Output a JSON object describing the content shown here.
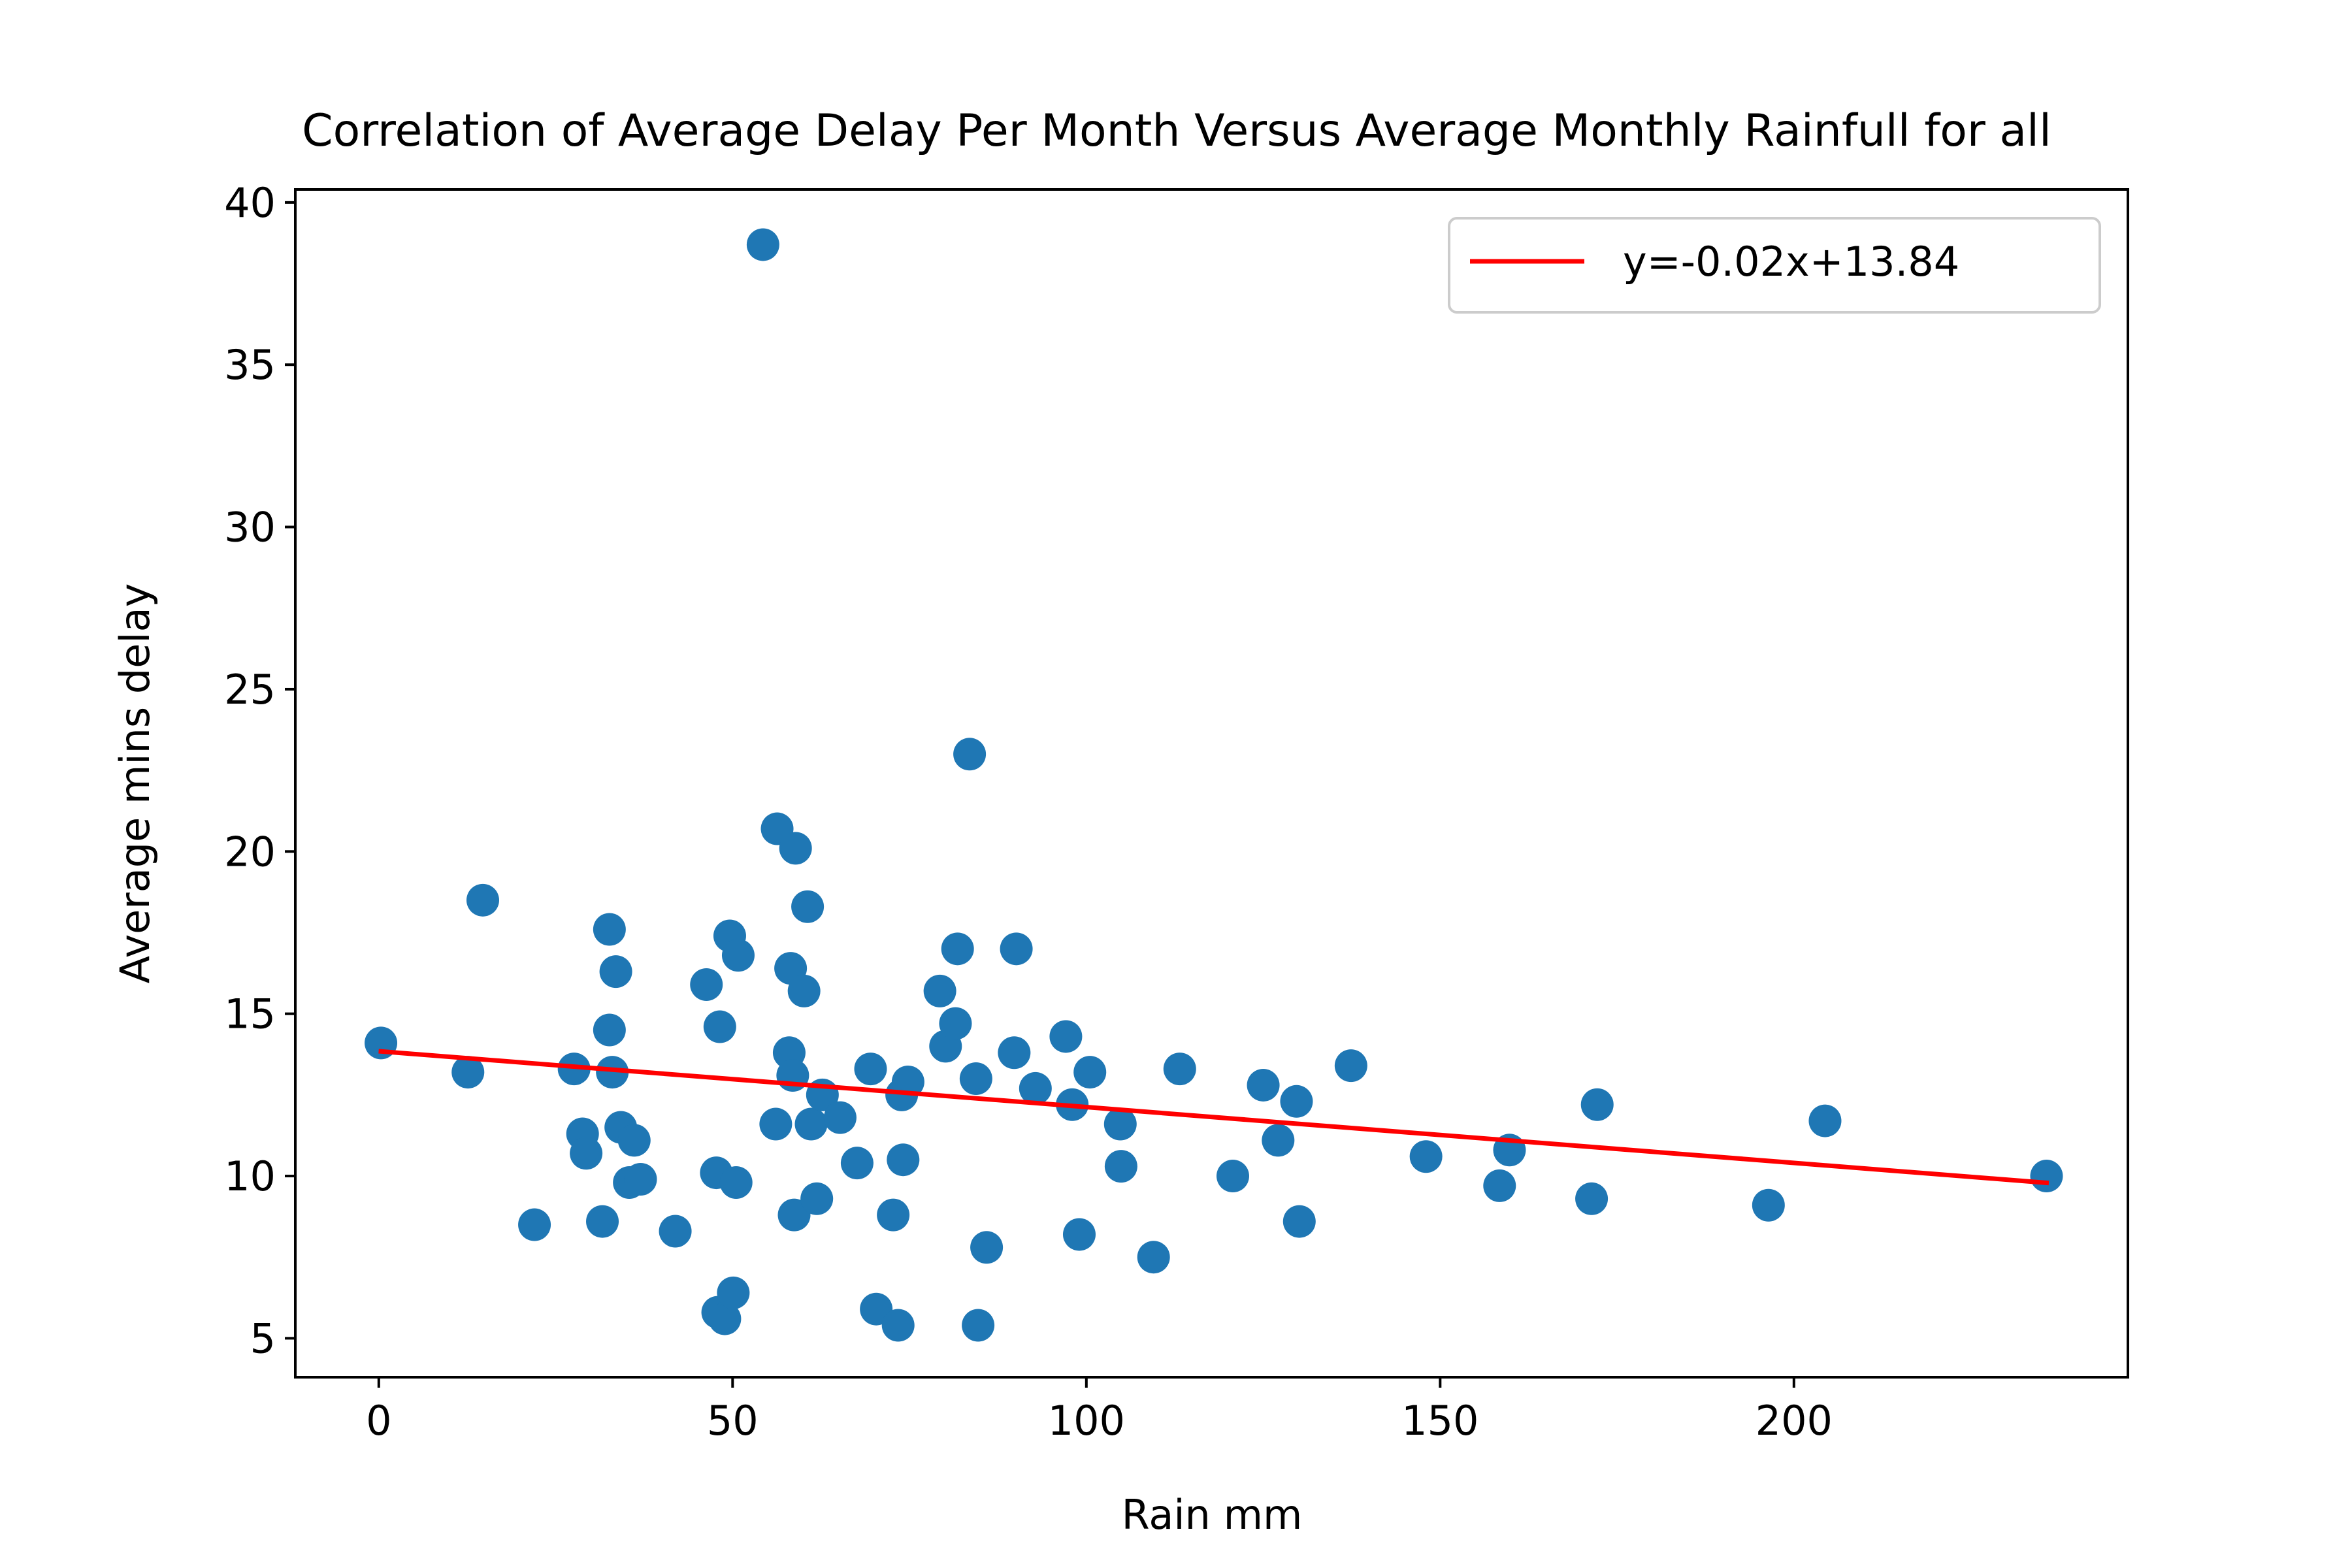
{
  "chart_data": {
    "type": "scatter",
    "title": "Correlation of Average Delay Per Month Versus Average Monthly Rainfull for all",
    "xlabel": "Rain mm",
    "ylabel": "Average mins delay",
    "xlim": [
      -11.8,
      247.2
    ],
    "ylim": [
      3.8,
      40.4
    ],
    "xticks": [
      0,
      50,
      100,
      150,
      200
    ],
    "yticks": [
      5,
      10,
      15,
      20,
      25,
      30,
      35,
      40
    ],
    "grid": false,
    "legend_position": "upper right",
    "series": [
      {
        "kind": "scatter",
        "color": "#1f77b4",
        "points": [
          [
            0.3,
            14.1
          ],
          [
            12.6,
            13.2
          ],
          [
            14.7,
            18.5
          ],
          [
            22.0,
            8.5
          ],
          [
            27.6,
            13.3
          ],
          [
            28.8,
            11.3
          ],
          [
            29.3,
            10.7
          ],
          [
            31.6,
            8.6
          ],
          [
            32.6,
            17.6
          ],
          [
            32.6,
            14.5
          ],
          [
            33.0,
            13.2
          ],
          [
            33.5,
            16.3
          ],
          [
            34.2,
            11.5
          ],
          [
            35.4,
            9.8
          ],
          [
            36.1,
            11.1
          ],
          [
            37.0,
            9.9
          ],
          [
            41.9,
            8.3
          ],
          [
            46.3,
            15.9
          ],
          [
            47.7,
            10.1
          ],
          [
            47.9,
            5.8
          ],
          [
            48.2,
            14.6
          ],
          [
            48.9,
            5.6
          ],
          [
            49.6,
            17.4
          ],
          [
            50.1,
            6.4
          ],
          [
            50.5,
            9.8
          ],
          [
            50.8,
            16.8
          ],
          [
            54.3,
            38.7
          ],
          [
            56.1,
            11.6
          ],
          [
            56.3,
            20.7
          ],
          [
            58.0,
            13.8
          ],
          [
            58.2,
            16.4
          ],
          [
            58.5,
            13.1
          ],
          [
            58.7,
            8.8
          ],
          [
            58.9,
            20.1
          ],
          [
            60.1,
            15.7
          ],
          [
            60.6,
            18.3
          ],
          [
            61.1,
            11.6
          ],
          [
            61.9,
            9.3
          ],
          [
            62.7,
            12.5
          ],
          [
            65.2,
            11.8
          ],
          [
            67.6,
            10.4
          ],
          [
            69.5,
            13.3
          ],
          [
            70.3,
            5.9
          ],
          [
            72.7,
            8.8
          ],
          [
            73.4,
            5.4
          ],
          [
            73.9,
            12.5
          ],
          [
            74.1,
            10.5
          ],
          [
            74.8,
            12.9
          ],
          [
            79.3,
            15.7
          ],
          [
            80.1,
            14.0
          ],
          [
            81.5,
            14.7
          ],
          [
            81.8,
            17.0
          ],
          [
            83.5,
            23.0
          ],
          [
            84.4,
            13.0
          ],
          [
            84.7,
            5.4
          ],
          [
            85.9,
            7.8
          ],
          [
            89.8,
            13.8
          ],
          [
            90.1,
            17.0
          ],
          [
            92.8,
            12.7
          ],
          [
            97.1,
            14.3
          ],
          [
            98.0,
            12.2
          ],
          [
            99.0,
            8.2
          ],
          [
            100.5,
            13.2
          ],
          [
            104.8,
            11.6
          ],
          [
            104.9,
            10.3
          ],
          [
            109.5,
            7.5
          ],
          [
            113.2,
            13.3
          ],
          [
            120.7,
            10.0
          ],
          [
            125.0,
            12.8
          ],
          [
            127.1,
            11.1
          ],
          [
            129.7,
            12.3
          ],
          [
            130.1,
            8.6
          ],
          [
            137.4,
            13.4
          ],
          [
            148.0,
            10.6
          ],
          [
            158.4,
            9.7
          ],
          [
            159.8,
            10.8
          ],
          [
            171.4,
            9.3
          ],
          [
            172.2,
            12.2
          ],
          [
            196.4,
            9.1
          ],
          [
            204.4,
            11.7
          ],
          [
            235.7,
            10.0
          ]
        ]
      },
      {
        "kind": "line",
        "name": "y=-0.02x+13.84",
        "color": "#ff0000",
        "points": [
          [
            0.3,
            13.84
          ],
          [
            235.7,
            9.79
          ]
        ]
      }
    ]
  }
}
